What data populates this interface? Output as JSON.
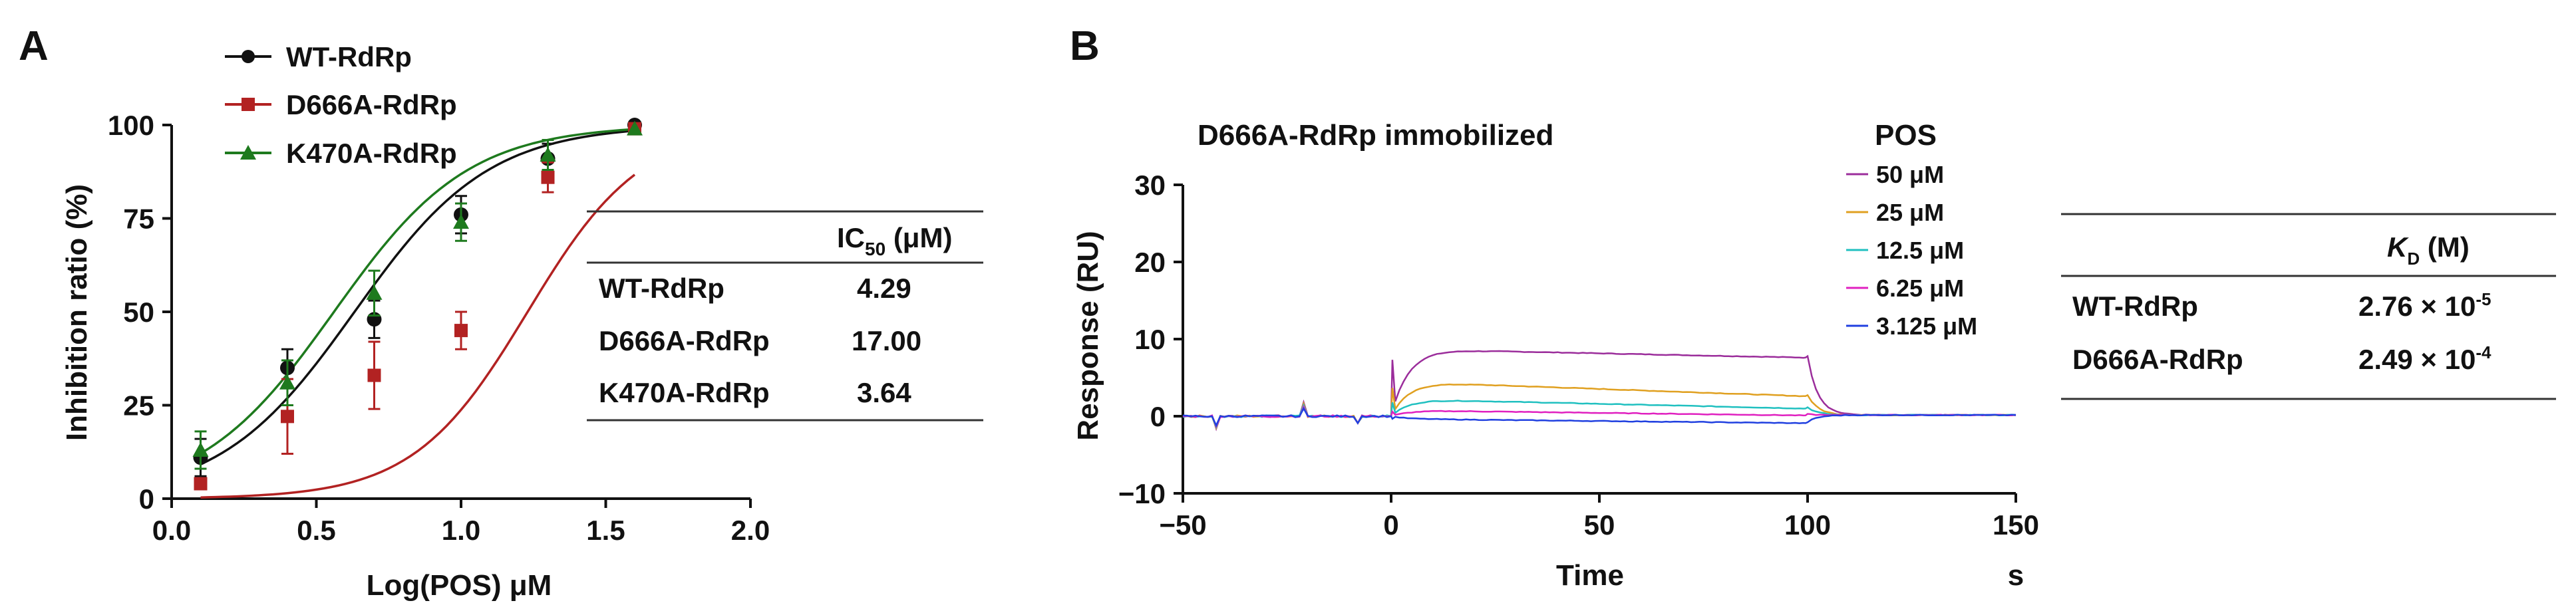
{
  "panelA": {
    "label": "A",
    "chart_data": {
      "type": "line",
      "title": "",
      "xlabel": "Log(POS) μM",
      "ylabel": "Inhibition ratio (%)",
      "xlim": [
        0,
        2.0
      ],
      "ylim": [
        0,
        100
      ],
      "xticks": [
        "0.0",
        "0.5",
        "1.0",
        "1.5",
        "2.0"
      ],
      "yticks": [
        "0",
        "25",
        "50",
        "75",
        "100"
      ],
      "legend_position": "top-left",
      "series": [
        {
          "name": "WT-RdRp",
          "color": "#111111",
          "marker": "circle",
          "x": [
            0.1,
            0.4,
            0.7,
            1.0,
            1.3,
            1.6
          ],
          "y": [
            11,
            35,
            48,
            76,
            91,
            100
          ],
          "err": [
            5,
            5,
            5,
            5,
            4,
            0
          ],
          "ic50_log": 0.632,
          "fit_slope": 0.85
        },
        {
          "name": "D666A-RdRp",
          "color": "#b22222",
          "marker": "square",
          "x": [
            0.1,
            0.4,
            0.7,
            1.0,
            1.3,
            1.6
          ],
          "y": [
            4,
            22,
            33,
            45,
            86,
            99
          ],
          "err": [
            0,
            10,
            9,
            5,
            4,
            0
          ],
          "ic50_log": 1.23,
          "fit_slope": 1.0
        },
        {
          "name": "K470A-RdRp",
          "color": "#1e7a1e",
          "marker": "triangle",
          "x": [
            0.1,
            0.4,
            0.7,
            1.0,
            1.3,
            1.6
          ],
          "y": [
            13,
            31,
            55,
            74,
            92,
            99
          ],
          "err": [
            5,
            6,
            6,
            5,
            4,
            0
          ],
          "ic50_log": 0.561,
          "fit_slope": 0.85
        }
      ]
    },
    "table": {
      "header": "IC",
      "header_sub": "50",
      "header_unit": " (μM)",
      "rows": [
        {
          "name": "WT-RdRp",
          "value": "4.29"
        },
        {
          "name": "D666A-RdRp",
          "value": "17.00"
        },
        {
          "name": "K470A-RdRp",
          "value": "3.64"
        }
      ]
    }
  },
  "panelB": {
    "label": "B",
    "chart_data": {
      "type": "line",
      "title": "D666A-RdRp immobilized",
      "xlabel": "Time",
      "xunit": "s",
      "ylabel": "Response (RU)",
      "xlim": [
        -50,
        150
      ],
      "ylim": [
        -10,
        30
      ],
      "xticks": [
        "−50",
        "0",
        "50",
        "100",
        "150"
      ],
      "yticks": [
        "−10",
        "0",
        "10",
        "20",
        "30"
      ],
      "legend_title": "POS",
      "legend_position": "top-right",
      "series": [
        {
          "name": "50 μM",
          "color": "#9b2d9b",
          "plateau": 8.6,
          "end": 7.6
        },
        {
          "name": "25 μM",
          "color": "#e0a020",
          "plateau": 4.3,
          "end": 2.6
        },
        {
          "name": "12.5 μM",
          "color": "#20c0c0",
          "plateau": 2.1,
          "end": 1.0
        },
        {
          "name": "6.25 μM",
          "color": "#e020c0",
          "plateau": 0.7,
          "end": 0.1
        },
        {
          "name": "3.125 μM",
          "color": "#2040e0",
          "plateau": -0.4,
          "end": -0.9
        }
      ]
    },
    "table": {
      "header": "K",
      "header_sub": "D",
      "header_unit": " (M)",
      "rows": [
        {
          "name": "WT-RdRp",
          "mantissa": "2.76 × 10",
          "exp": "-5"
        },
        {
          "name": "D666A-RdRp",
          "mantissa": "2.49 × 10",
          "exp": "-4"
        }
      ]
    }
  }
}
